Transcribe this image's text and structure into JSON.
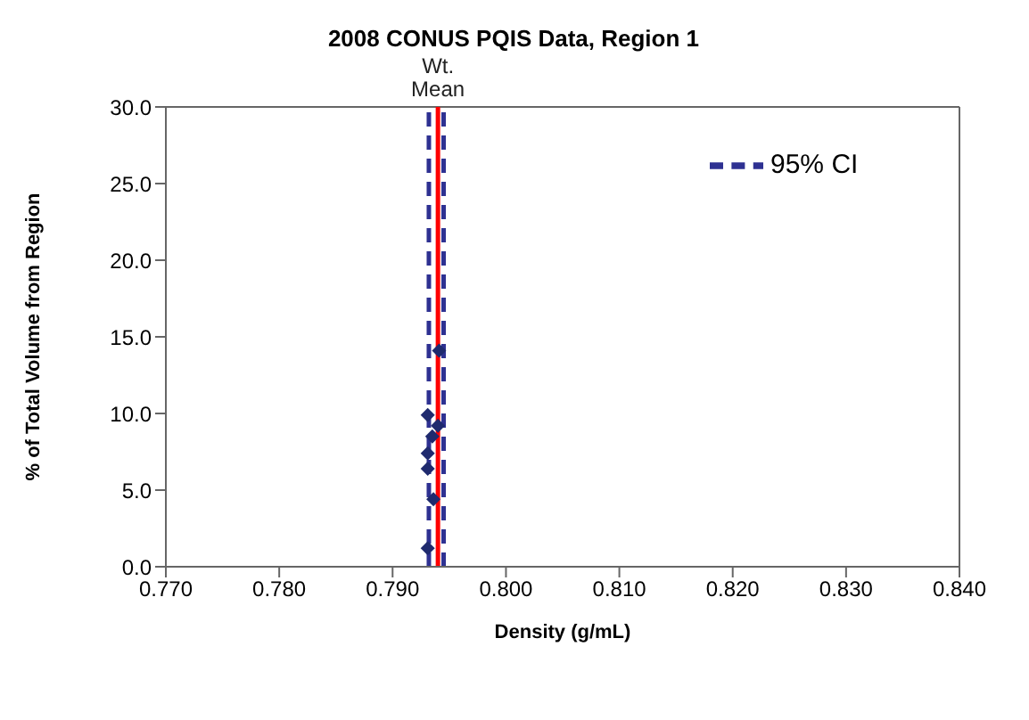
{
  "chart_data": {
    "type": "scatter",
    "title": "2008 CONUS  PQIS Data, Region 1",
    "xlabel": "Density (g/mL)",
    "ylabel": "% of Total Volume from Region",
    "series": [
      {
        "color": "#1f2a6e",
        "marker": "diamond",
        "x": [
          0.7941,
          0.7931,
          0.794,
          0.7935,
          0.7931,
          0.7931,
          0.7936,
          0.7931
        ],
        "values": [
          14.1,
          9.9,
          9.2,
          8.5,
          7.4,
          6.4,
          4.4,
          1.2
        ]
      },
      {
        "type": "line",
        "name": "95% CI",
        "color": "#2e3192",
        "line_style": "dashed",
        "marker": "none",
        "x": [
          0.7932,
          0.7932
        ],
        "values": [
          0,
          30
        ]
      },
      {
        "type": "line",
        "color": "#2e3192",
        "line_style": "dashed",
        "marker": "none",
        "x": [
          0.7945,
          0.7945
        ],
        "values": [
          0,
          30
        ]
      }
    ],
    "xlim": [
      0.77,
      0.84
    ],
    "xticks": [
      {
        "value": 0.77,
        "label": "0.770"
      },
      {
        "value": 0.78,
        "label": "0.780"
      },
      {
        "value": 0.79,
        "label": "0.790"
      },
      {
        "value": 0.8,
        "label": "0.800"
      },
      {
        "value": 0.81,
        "label": "0.810"
      },
      {
        "value": 0.82,
        "label": "0.820"
      },
      {
        "value": 0.83,
        "label": "0.830"
      },
      {
        "value": 0.84,
        "label": "0.840"
      }
    ],
    "ylim": [
      0,
      30
    ],
    "yticks": [
      {
        "value": 0,
        "label": "0.0"
      },
      {
        "value": 5,
        "label": "5.0"
      },
      {
        "value": 10,
        "label": "10.0"
      },
      {
        "value": 15,
        "label": "15.0"
      },
      {
        "value": 20,
        "label": "20.0"
      },
      {
        "value": 25,
        "label": "25.0"
      },
      {
        "value": 30,
        "label": "30.0"
      }
    ],
    "ref_lines": [
      {
        "axis": "x",
        "value": 0.794,
        "label": "Wt. Mean",
        "color": "#ff0000",
        "line_style": "solid"
      }
    ],
    "grid": false,
    "legend": "top right"
  }
}
